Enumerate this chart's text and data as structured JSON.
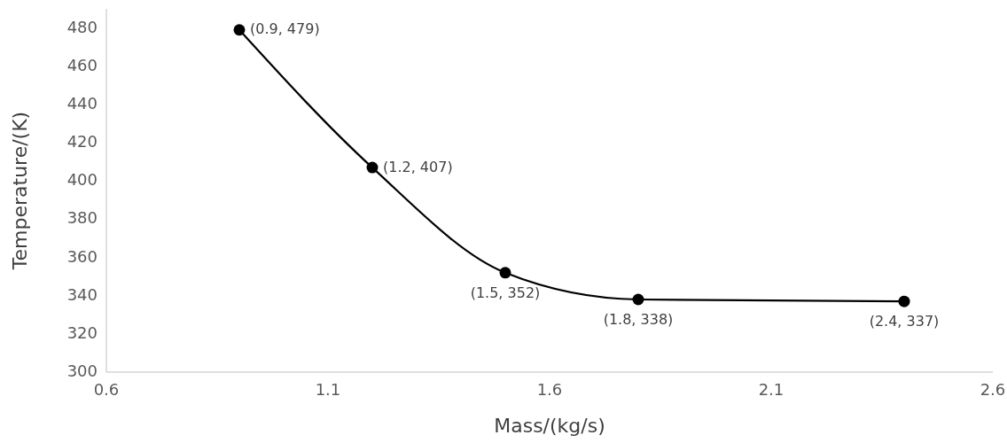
{
  "chart_data": {
    "type": "line",
    "xlabel": "Mass/(kg/s)",
    "ylabel": "Temperature/(K)",
    "x": [
      0.9,
      1.2,
      1.5,
      1.8,
      2.4
    ],
    "series": [
      {
        "color": "#000000",
        "values": [
          479,
          407,
          352,
          338,
          337
        ],
        "value_labels": [
          "(0.9, 479)",
          "(1.2, 407)",
          "(1.5, 352)",
          "(1.8, 338)",
          "(2.4, 337)"
        ]
      }
    ],
    "xlim": [
      0.6,
      2.6
    ],
    "xticks": [
      0.6,
      1.1,
      1.6,
      2.1,
      2.6
    ],
    "ylim": [
      300,
      490
    ],
    "yticks": [
      300,
      320,
      340,
      360,
      380,
      400,
      420,
      440,
      460,
      480
    ],
    "grid": false,
    "marker": "circle",
    "line_style": "solid"
  }
}
